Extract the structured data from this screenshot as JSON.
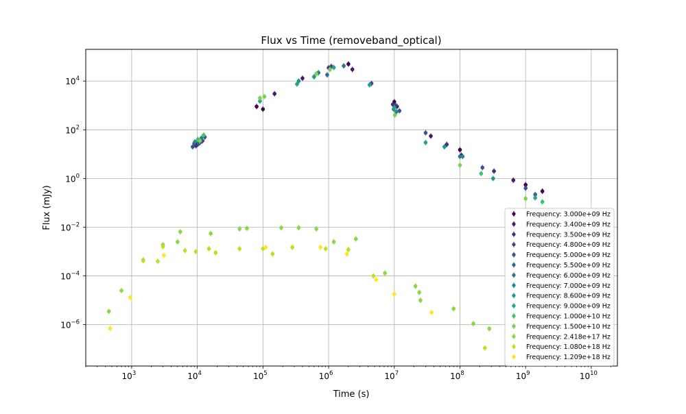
{
  "chart_data": {
    "type": "scatter",
    "title": "Flux vs Time (removeband_optical)",
    "xlabel": "Time (s)",
    "ylabel": "Flux (mJy)",
    "xscale": "log",
    "yscale": "log",
    "xlim": [
      200,
      25000000000
    ],
    "ylim": [
      2e-08,
      200000
    ],
    "grid": true,
    "legend_position": "lower-right",
    "x_ticks": [
      {
        "value": 1000,
        "mant": "10",
        "exp": "3"
      },
      {
        "value": 10000,
        "mant": "10",
        "exp": "4"
      },
      {
        "value": 100000,
        "mant": "10",
        "exp": "5"
      },
      {
        "value": 1000000,
        "mant": "10",
        "exp": "6"
      },
      {
        "value": 10000000,
        "mant": "10",
        "exp": "7"
      },
      {
        "value": 100000000,
        "mant": "10",
        "exp": "8"
      },
      {
        "value": 1000000000,
        "mant": "10",
        "exp": "9"
      },
      {
        "value": 10000000000,
        "mant": "10",
        "exp": "10"
      }
    ],
    "y_ticks": [
      {
        "value": 1e-06,
        "mant": "10",
        "exp": "−6"
      },
      {
        "value": 0.0001,
        "mant": "10",
        "exp": "−4"
      },
      {
        "value": 0.01,
        "mant": "10",
        "exp": "−2"
      },
      {
        "value": 1,
        "mant": "10",
        "exp": "0"
      },
      {
        "value": 100,
        "mant": "10",
        "exp": "2"
      },
      {
        "value": 10000,
        "mant": "10",
        "exp": "4"
      }
    ],
    "series": [
      {
        "name": "Frequency: 3.000e+09 Hz",
        "color": "#440154",
        "points": [
          [
            10000,
            25
          ],
          [
            80000,
            900
          ],
          [
            100000,
            700
          ],
          [
            2000000,
            50000
          ],
          [
            10000000,
            1400
          ],
          [
            100000000,
            15
          ],
          [
            1000000000,
            0.55
          ],
          [
            1800000000,
            0.3
          ]
        ]
      },
      {
        "name": "Frequency: 3.400e+09 Hz",
        "color": "#481a6c",
        "points": [
          [
            11000,
            30
          ],
          [
            150000,
            3000
          ],
          [
            400000,
            13000
          ],
          [
            2300000,
            30000
          ],
          [
            11000000,
            900
          ],
          [
            36000000,
            55
          ],
          [
            105000000,
            9
          ],
          [
            650000000,
            0.85
          ]
        ]
      },
      {
        "name": "Frequency: 3.500e+09 Hz",
        "color": "#472f7d",
        "points": [
          [
            9500,
            22
          ],
          [
            1000000,
            35000
          ],
          [
            9500000,
            1100
          ],
          [
            63000000,
            25
          ],
          [
            330000000,
            2
          ]
        ]
      },
      {
        "name": "Frequency: 4.800e+09 Hz",
        "color": "#414487",
        "points": [
          [
            9000,
            28
          ],
          [
            12000,
            35
          ],
          [
            1100000,
            40000
          ],
          [
            4500000,
            8000
          ],
          [
            10500000,
            1000
          ]
        ]
      },
      {
        "name": "Frequency: 5.000e+09 Hz",
        "color": "#39568c",
        "points": [
          [
            8500,
            20
          ],
          [
            13000,
            50
          ],
          [
            12000000,
            600
          ],
          [
            30000000,
            75
          ],
          [
            220000000,
            2.8
          ],
          [
            1000000000,
            0.4
          ]
        ]
      },
      {
        "name": "Frequency: 5.500e+09 Hz",
        "color": "#31688e",
        "points": [
          [
            10500,
            27
          ],
          [
            950000,
            18000
          ],
          [
            1400000000,
            0.22
          ]
        ]
      },
      {
        "name": "Frequency: 6.000e+09 Hz",
        "color": "#2a788e",
        "points": [
          [
            11500,
            45
          ],
          [
            700000,
            22000
          ],
          [
            1700000,
            42000
          ],
          [
            9800000,
            700
          ],
          [
            100000000,
            8
          ]
        ]
      },
      {
        "name": "Frequency: 7.000e+09 Hz",
        "color": "#23888e",
        "points": [
          [
            9200,
            32
          ],
          [
            10800000,
            550
          ],
          [
            110000000,
            8
          ]
        ]
      },
      {
        "name": "Frequency: 8.600e+09 Hz",
        "color": "#1f988b",
        "points": [
          [
            350000,
            10000
          ],
          [
            600000,
            15000
          ],
          [
            58000000,
            20
          ],
          [
            320000000,
            1
          ]
        ]
      },
      {
        "name": "Frequency: 9.000e+09 Hz",
        "color": "#22a884",
        "points": [
          [
            90000,
            1500
          ],
          [
            330000,
            7500
          ],
          [
            1200000,
            36000
          ],
          [
            4200000,
            7000
          ],
          [
            10000000,
            800
          ],
          [
            30000000,
            30
          ],
          [
            1400000000,
            0.16
          ]
        ]
      },
      {
        "name": "Frequency: 1.000e+10 Hz",
        "color": "#44bf70",
        "points": [
          [
            10200,
            40
          ],
          [
            12500,
            60
          ],
          [
            210000000,
            1.6
          ],
          [
            1800000000,
            0.11
          ]
        ]
      },
      {
        "name": "Frequency: 1.500e+10 Hz",
        "color": "#7ad151",
        "points": [
          [
            11000,
            35
          ],
          [
            90000,
            2000
          ],
          [
            105000,
            2300
          ],
          [
            650000,
            20000
          ],
          [
            1050000,
            30000
          ],
          [
            10200000,
            400
          ],
          [
            100000000,
            3.5
          ],
          [
            1000000000,
            0.15
          ]
        ]
      },
      {
        "name": "Frequency: 2.418e+17 Hz",
        "color": "#8ed645",
        "points": [
          [
            450,
            3.5e-06
          ],
          [
            700,
            2.5e-05
          ],
          [
            1500,
            0.00045
          ],
          [
            3000,
            0.0019
          ],
          [
            5000,
            0.0025
          ],
          [
            5500,
            0.0065
          ],
          [
            16000,
            0.0055
          ],
          [
            44000,
            0.0085
          ],
          [
            57000,
            0.009
          ],
          [
            190000,
            0.0095
          ],
          [
            350000,
            0.0095
          ],
          [
            650000,
            0.0085
          ],
          [
            1200000,
            0.0025
          ],
          [
            2600000,
            0.0033
          ],
          [
            7200000,
            0.00013
          ],
          [
            21000000,
            3.8e-05
          ],
          [
            24000000,
            2.1e-05
          ],
          [
            25000000,
            1e-05
          ],
          [
            80000000,
            4.5e-06
          ],
          [
            160000000,
            1.1e-06
          ],
          [
            280000000,
            6.8e-07
          ]
        ]
      },
      {
        "name": "Frequency: 1.080e+18 Hz",
        "color": "#bddf26",
        "points": [
          [
            1500,
            0.00042
          ],
          [
            2500,
            0.0004
          ],
          [
            3000,
            0.0016
          ],
          [
            6500,
            0.0011
          ],
          [
            9500,
            0.001
          ],
          [
            15000,
            0.0013
          ],
          [
            19000,
            0.0009
          ],
          [
            44000,
            0.0013
          ],
          [
            100000,
            0.0013
          ],
          [
            140000,
            0.0008
          ],
          [
            280000,
            0.0015
          ],
          [
            900000,
            0.0013
          ],
          [
            2000000,
            0.0012
          ],
          [
            4800000,
            0.0001
          ],
          [
            240000000,
            1.1e-07
          ]
        ]
      },
      {
        "name": "Frequency: 1.209e+18 Hz",
        "color": "#fde725",
        "points": [
          [
            470,
            7e-07
          ],
          [
            950,
            1.3e-05
          ],
          [
            3100,
            0.0007
          ],
          [
            110000,
            0.0015
          ],
          [
            750000,
            0.0015
          ],
          [
            1900000,
            0.0008
          ],
          [
            5300000,
            7e-05
          ],
          [
            10000000,
            1.8e-05
          ],
          [
            37000000,
            3.2e-06
          ]
        ]
      }
    ]
  }
}
